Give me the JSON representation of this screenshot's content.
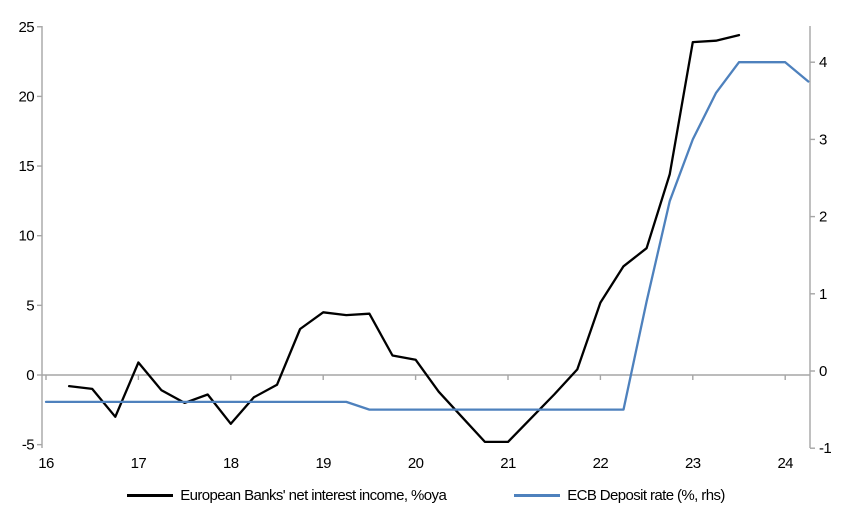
{
  "chart_data": {
    "type": "line",
    "title": "",
    "grid": "zero-line-only",
    "legend_position": "bottom",
    "background_color": "#ffffff",
    "axis_color": "#a6a6a6",
    "x_axis": {
      "ticks": [
        "16",
        "17",
        "18",
        "19",
        "20",
        "21",
        "22",
        "23",
        "24"
      ],
      "tick_values": [
        16,
        17,
        18,
        19,
        20,
        21,
        22,
        23,
        24
      ],
      "range": [
        16,
        24.28
      ]
    },
    "left_axis": {
      "ticks": [
        "25",
        "20",
        "15",
        "10",
        "5",
        "0",
        "-5"
      ],
      "tick_values": [
        25,
        20,
        15,
        10,
        5,
        0,
        -5
      ],
      "range": [
        -5,
        25
      ]
    },
    "right_axis": {
      "ticks": [
        "4",
        "3",
        "2",
        "1",
        "0",
        "-1"
      ],
      "tick_values": [
        4,
        3,
        2,
        1,
        0,
        -1
      ],
      "range": [
        -1,
        4.5
      ]
    },
    "series": [
      {
        "name": "European Banks' net interest income, %oya",
        "color": "#000000",
        "axis": "left",
        "x": [
          16.25,
          16.5,
          16.75,
          17.0,
          17.25,
          17.5,
          17.75,
          18.0,
          18.25,
          18.5,
          18.75,
          19.0,
          19.25,
          19.5,
          19.75,
          20.0,
          20.25,
          20.5,
          20.75,
          21.0,
          21.25,
          21.5,
          21.75,
          22.0,
          22.25,
          22.5,
          22.75,
          23.0,
          23.25,
          23.5
        ],
        "values": [
          -0.8,
          -1.0,
          -3.0,
          0.9,
          -1.1,
          -2.0,
          -1.4,
          -3.5,
          -1.6,
          -0.7,
          3.3,
          4.5,
          4.3,
          4.4,
          1.4,
          1.1,
          -1.2,
          -3.0,
          -4.8,
          -4.8,
          -3.1,
          -1.4,
          0.4,
          5.2,
          7.8,
          9.1,
          14.4,
          23.9,
          24.0,
          24.4
        ]
      },
      {
        "name": "ECB Deposit rate (%, rhs)",
        "color": "#4e81bd",
        "axis": "right",
        "x": [
          16.0,
          16.25,
          16.5,
          16.75,
          17.0,
          17.25,
          17.5,
          17.75,
          18.0,
          18.25,
          18.5,
          18.75,
          19.0,
          19.25,
          19.5,
          19.75,
          20.0,
          20.25,
          20.5,
          20.75,
          21.0,
          21.25,
          21.5,
          21.75,
          22.0,
          22.25,
          22.5,
          22.75,
          23.0,
          23.25,
          23.5,
          23.75,
          24.0,
          24.25
        ],
        "values": [
          -0.4,
          -0.4,
          -0.4,
          -0.4,
          -0.4,
          -0.4,
          -0.4,
          -0.4,
          -0.4,
          -0.4,
          -0.4,
          -0.4,
          -0.4,
          -0.4,
          -0.5,
          -0.5,
          -0.5,
          -0.5,
          -0.5,
          -0.5,
          -0.5,
          -0.5,
          -0.5,
          -0.5,
          -0.5,
          -0.5,
          0.9,
          2.2,
          3.0,
          3.6,
          4.0,
          4.0,
          4.0,
          3.75
        ]
      }
    ]
  }
}
